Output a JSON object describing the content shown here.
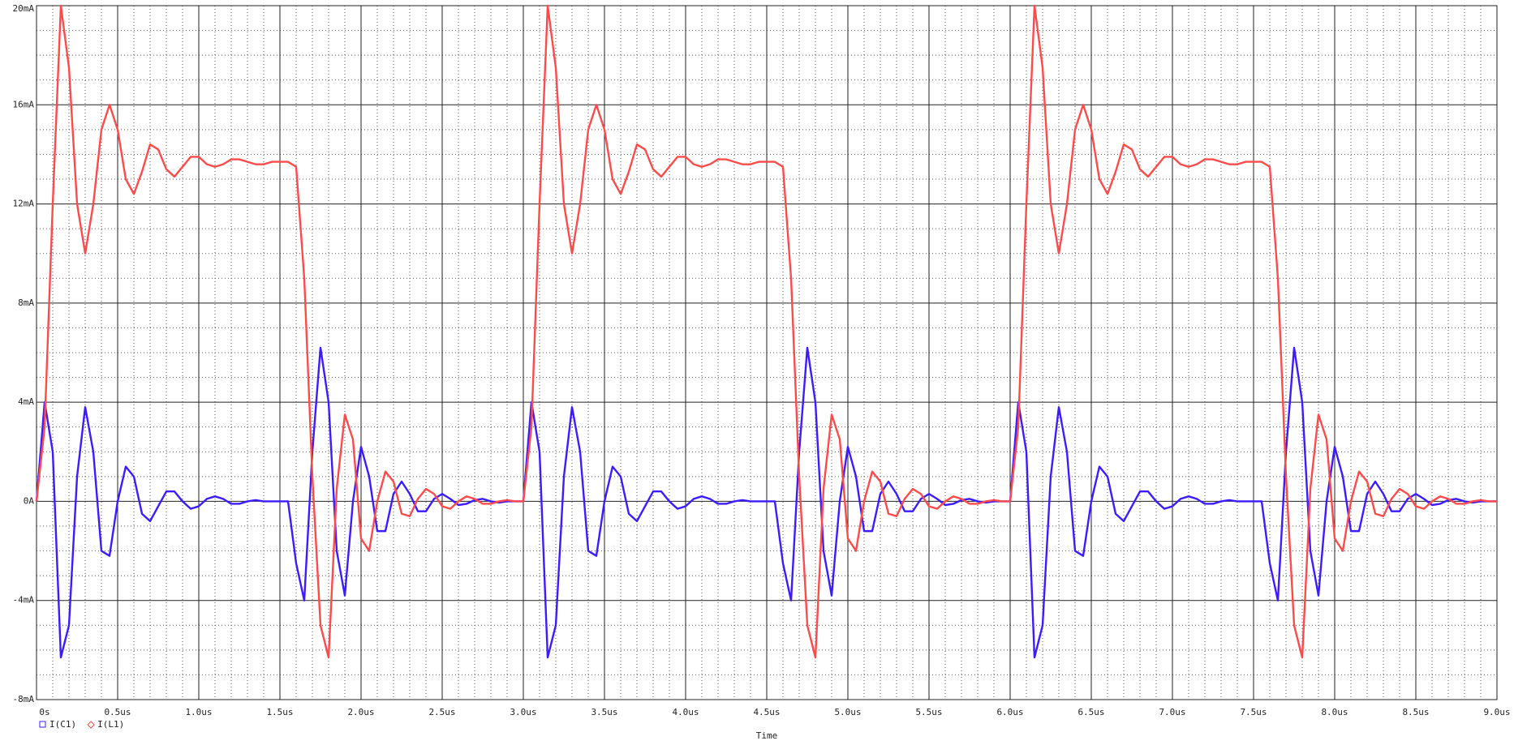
{
  "chart_data": {
    "type": "line",
    "xlabel": "Time",
    "x": [
      0,
      0.05,
      0.1,
      0.15,
      0.2,
      0.25,
      0.3,
      0.35,
      0.4,
      0.45,
      0.5,
      0.55,
      0.6,
      0.65,
      0.7,
      0.75,
      0.8,
      0.85,
      0.9,
      0.95,
      1,
      1.05,
      1.1,
      1.15,
      1.2,
      1.25,
      1.3,
      1.35,
      1.4,
      1.45,
      1.5,
      1.55,
      1.6,
      1.65,
      1.7,
      1.75,
      1.8,
      1.85,
      1.9,
      1.95,
      2,
      2.05,
      2.1,
      2.15,
      2.2,
      2.25,
      2.3,
      2.35,
      2.4,
      2.45,
      2.5,
      2.55,
      2.6,
      2.65,
      2.7,
      2.75,
      2.8,
      2.85,
      2.9,
      2.95,
      3,
      3.05,
      3.1,
      3.15,
      3.2,
      3.25,
      3.3,
      3.35,
      3.4,
      3.45,
      3.5,
      3.55,
      3.6,
      3.65,
      3.7,
      3.75,
      3.8,
      3.85,
      3.9,
      3.95,
      4,
      4.05,
      4.1,
      4.15,
      4.2,
      4.25,
      4.3,
      4.35,
      4.4,
      4.45,
      4.5,
      4.55,
      4.6,
      4.65,
      4.7,
      4.75,
      4.8,
      4.85,
      4.9,
      4.95,
      5,
      5.05,
      5.1,
      5.15,
      5.2,
      5.25,
      5.3,
      5.35,
      5.4,
      5.45,
      5.5,
      5.55,
      5.6,
      5.65,
      5.7,
      5.75,
      5.8,
      5.85,
      5.9,
      5.95,
      6,
      6.05,
      6.1,
      6.15,
      6.2,
      6.25,
      6.3,
      6.35,
      6.4,
      6.45,
      6.5,
      6.55,
      6.6,
      6.65,
      6.7,
      6.75,
      6.8,
      6.85,
      6.9,
      6.95,
      7,
      7.05,
      7.1,
      7.15,
      7.2,
      7.25,
      7.3,
      7.35,
      7.4,
      7.45,
      7.5,
      7.55,
      7.6,
      7.65,
      7.7,
      7.75,
      7.8,
      7.85,
      7.9,
      7.95,
      8,
      8.05,
      8.1,
      8.15,
      8.2,
      8.25,
      8.3,
      8.35,
      8.4,
      8.45,
      8.5,
      8.55,
      8.6,
      8.65,
      8.7,
      8.75,
      8.8,
      8.85,
      8.9,
      8.95,
      9
    ],
    "series": [
      {
        "name": "I(C1)",
        "color": "#3a1cff",
        "marker": "square",
        "values": [
          0,
          4,
          2,
          -6.3,
          -5,
          1,
          3.8,
          2,
          -2,
          -2.2,
          0,
          1.4,
          1,
          -0.5,
          -0.8,
          -0.2,
          0.4,
          0.4,
          0,
          -0.3,
          -0.2,
          0.1,
          0.2,
          0.1,
          -0.1,
          -0.1,
          0,
          0.05,
          0,
          0,
          0,
          0,
          -2.5,
          -4,
          2,
          6.2,
          4,
          -2,
          -3.8,
          0,
          2.2,
          1,
          -1.2,
          -1.2,
          0.3,
          0.8,
          0.3,
          -0.4,
          -0.4,
          0.1,
          0.3,
          0.1,
          -0.15,
          -0.1,
          0.05,
          0.1,
          0,
          -0.05,
          0,
          0,
          0,
          4,
          2,
          -6.3,
          -5,
          1,
          3.8,
          2,
          -2,
          -2.2,
          0,
          1.4,
          1,
          -0.5,
          -0.8,
          -0.2,
          0.4,
          0.4,
          0,
          -0.3,
          -0.2,
          0.1,
          0.2,
          0.1,
          -0.1,
          -0.1,
          0,
          0.05,
          0,
          0,
          0,
          0,
          -2.5,
          -4,
          2,
          6.2,
          4,
          -2,
          -3.8,
          0,
          2.2,
          1,
          -1.2,
          -1.2,
          0.3,
          0.8,
          0.3,
          -0.4,
          -0.4,
          0.1,
          0.3,
          0.1,
          -0.15,
          -0.1,
          0.05,
          0.1,
          0,
          -0.05,
          0,
          0,
          0,
          4,
          2,
          -6.3,
          -5,
          1,
          3.8,
          2,
          -2,
          -2.2,
          0,
          1.4,
          1,
          -0.5,
          -0.8,
          -0.2,
          0.4,
          0.4,
          0,
          -0.3,
          -0.2,
          0.1,
          0.2,
          0.1,
          -0.1,
          -0.1,
          0,
          0.05,
          0,
          0,
          0,
          0,
          -2.5,
          -4,
          2,
          6.2,
          4,
          -2,
          -3.8,
          0,
          2.2,
          1,
          -1.2,
          -1.2,
          0.3,
          0.8,
          0.3,
          -0.4,
          -0.4,
          0.1,
          0.3,
          0.1,
          -0.15,
          -0.1,
          0.05,
          0.1,
          0,
          -0.05,
          0,
          0,
          0
        ]
      },
      {
        "name": "I(L1)",
        "color": "#ff4a4a",
        "marker": "diamond",
        "values": [
          0,
          3,
          12,
          20,
          17.5,
          12,
          10,
          12,
          15,
          16,
          15,
          13,
          12.4,
          13.3,
          14.4,
          14.2,
          13.4,
          13.1,
          13.5,
          13.9,
          13.9,
          13.6,
          13.5,
          13.6,
          13.8,
          13.8,
          13.7,
          13.6,
          13.6,
          13.7,
          13.7,
          13.7,
          13.5,
          9,
          1,
          -5,
          -6.3,
          0.5,
          3.5,
          2.5,
          -1.5,
          -2,
          0,
          1.2,
          0.8,
          -0.5,
          -0.6,
          0.1,
          0.5,
          0.3,
          -0.2,
          -0.3,
          0,
          0.2,
          0.1,
          -0.1,
          -0.1,
          0,
          0.05,
          0,
          0,
          3,
          12,
          20,
          17.5,
          12,
          10,
          12,
          15,
          16,
          15,
          13,
          12.4,
          13.3,
          14.4,
          14.2,
          13.4,
          13.1,
          13.5,
          13.9,
          13.9,
          13.6,
          13.5,
          13.6,
          13.8,
          13.8,
          13.7,
          13.6,
          13.6,
          13.7,
          13.7,
          13.7,
          13.5,
          9,
          1,
          -5,
          -6.3,
          0.5,
          3.5,
          2.5,
          -1.5,
          -2,
          0,
          1.2,
          0.8,
          -0.5,
          -0.6,
          0.1,
          0.5,
          0.3,
          -0.2,
          -0.3,
          0,
          0.2,
          0.1,
          -0.1,
          -0.1,
          0,
          0.05,
          0,
          0,
          3,
          12,
          20,
          17.5,
          12,
          10,
          12,
          15,
          16,
          15,
          13,
          12.4,
          13.3,
          14.4,
          14.2,
          13.4,
          13.1,
          13.5,
          13.9,
          13.9,
          13.6,
          13.5,
          13.6,
          13.8,
          13.8,
          13.7,
          13.6,
          13.6,
          13.7,
          13.7,
          13.7,
          13.5,
          9,
          1,
          -5,
          -6.3,
          0.5,
          3.5,
          2.5,
          -1.5,
          -2,
          0,
          1.2,
          0.8,
          -0.5,
          -0.6,
          0.1,
          0.5,
          0.3,
          -0.2,
          -0.3,
          0,
          0.2,
          0.1,
          -0.1,
          -0.1,
          0,
          0.05,
          0,
          0
        ]
      }
    ],
    "xlim": [
      0,
      9
    ],
    "xticks": [
      {
        "value": 0,
        "label": "0s"
      },
      {
        "value": 0.5,
        "label": "0.5us"
      },
      {
        "value": 1,
        "label": "1.0us"
      },
      {
        "value": 1.5,
        "label": "1.5us"
      },
      {
        "value": 2,
        "label": "2.0us"
      },
      {
        "value": 2.5,
        "label": "2.5us"
      },
      {
        "value": 3,
        "label": "3.0us"
      },
      {
        "value": 3.5,
        "label": "3.5us"
      },
      {
        "value": 4,
        "label": "4.0us"
      },
      {
        "value": 4.5,
        "label": "4.5us"
      },
      {
        "value": 5,
        "label": "5.0us"
      },
      {
        "value": 5.5,
        "label": "5.5us"
      },
      {
        "value": 6,
        "label": "6.0us"
      },
      {
        "value": 6.5,
        "label": "6.5us"
      },
      {
        "value": 7,
        "label": "7.0us"
      },
      {
        "value": 7.5,
        "label": "7.5us"
      },
      {
        "value": 8,
        "label": "8.0us"
      },
      {
        "value": 8.5,
        "label": "8.5us"
      },
      {
        "value": 9,
        "label": "9.0us"
      }
    ],
    "ylim": [
      -8,
      20
    ],
    "yticks": [
      {
        "value": -8,
        "label": "-8mA"
      },
      {
        "value": -4,
        "label": "-4mA"
      },
      {
        "value": 0,
        "label": "0A"
      },
      {
        "value": 4,
        "label": "4mA"
      },
      {
        "value": 8,
        "label": "8mA"
      },
      {
        "value": 12,
        "label": "12mA"
      },
      {
        "value": 16,
        "label": "16mA"
      },
      {
        "value": 20,
        "label": "20mA"
      }
    ],
    "grid": true
  }
}
